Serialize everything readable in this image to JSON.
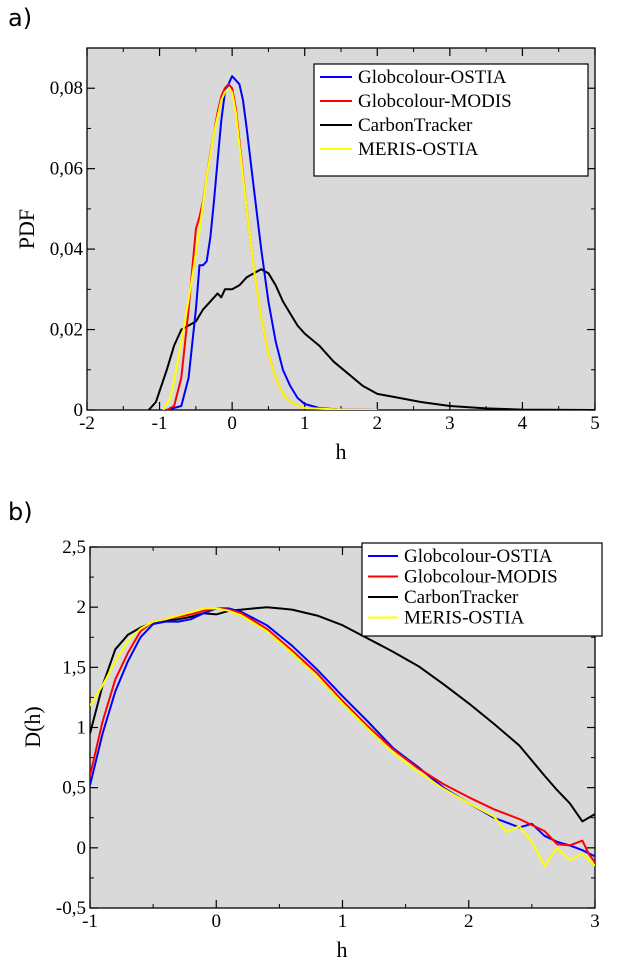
{
  "chart_data": [
    {
      "panel_label": "a)",
      "type": "line",
      "xlabel": "h",
      "ylabel": "PDF",
      "xlim": [
        -2,
        5
      ],
      "ylim": [
        0,
        0.09
      ],
      "xticks": [
        -2,
        -1,
        0,
        1,
        2,
        3,
        4,
        5
      ],
      "xtick_labels": [
        "-2",
        "-1",
        "0",
        "1",
        "2",
        "3",
        "4",
        "5"
      ],
      "yticks": [
        0,
        0.02,
        0.04,
        0.06,
        0.08
      ],
      "ytick_labels": [
        "0",
        "0,02",
        "0,04",
        "0,06",
        "0,08"
      ],
      "grid": false,
      "legend_position": "top-right",
      "series": [
        {
          "name": "Globcolour-OSTIA",
          "color": "#0000ff",
          "x": [
            -0.9,
            -0.7,
            -0.6,
            -0.5,
            -0.45,
            -0.4,
            -0.35,
            -0.3,
            -0.25,
            -0.2,
            -0.15,
            -0.1,
            -0.05,
            0.0,
            0.05,
            0.1,
            0.15,
            0.2,
            0.3,
            0.4,
            0.5,
            0.6,
            0.7,
            0.8,
            0.9,
            1.0,
            1.2,
            1.5,
            2.0
          ],
          "y": [
            0.0,
            0.001,
            0.008,
            0.025,
            0.036,
            0.036,
            0.037,
            0.043,
            0.052,
            0.062,
            0.072,
            0.079,
            0.081,
            0.083,
            0.082,
            0.081,
            0.077,
            0.07,
            0.055,
            0.04,
            0.027,
            0.017,
            0.01,
            0.006,
            0.003,
            0.0015,
            0.0005,
            0.0001,
            0.0
          ]
        },
        {
          "name": "Globcolour-MODIS",
          "color": "#ff0000",
          "x": [
            -0.9,
            -0.8,
            -0.7,
            -0.6,
            -0.5,
            -0.45,
            -0.4,
            -0.35,
            -0.3,
            -0.25,
            -0.2,
            -0.15,
            -0.1,
            -0.05,
            0.0,
            0.05,
            0.1,
            0.2,
            0.3,
            0.4,
            0.5,
            0.6,
            0.7,
            0.8,
            1.0,
            1.5,
            2.0
          ],
          "y": [
            0.0,
            0.001,
            0.008,
            0.025,
            0.045,
            0.048,
            0.052,
            0.058,
            0.064,
            0.069,
            0.074,
            0.078,
            0.08,
            0.081,
            0.08,
            0.075,
            0.067,
            0.05,
            0.035,
            0.023,
            0.014,
            0.008,
            0.004,
            0.002,
            0.0005,
            0.0001,
            0.0
          ]
        },
        {
          "name": "CarbonTracker",
          "color": "#000000",
          "x": [
            -1.15,
            -1.05,
            -0.9,
            -0.8,
            -0.7,
            -0.6,
            -0.5,
            -0.4,
            -0.3,
            -0.2,
            -0.15,
            -0.1,
            -0.05,
            0.0,
            0.1,
            0.2,
            0.3,
            0.4,
            0.5,
            0.6,
            0.7,
            0.8,
            0.9,
            1.0,
            1.2,
            1.4,
            1.6,
            1.8,
            2.0,
            2.3,
            2.6,
            3.0,
            3.5,
            4.0,
            5.0
          ],
          "y": [
            0.0,
            0.002,
            0.01,
            0.016,
            0.02,
            0.021,
            0.022,
            0.025,
            0.027,
            0.029,
            0.028,
            0.03,
            0.03,
            0.03,
            0.031,
            0.033,
            0.034,
            0.035,
            0.034,
            0.031,
            0.027,
            0.024,
            0.021,
            0.019,
            0.016,
            0.012,
            0.009,
            0.006,
            0.004,
            0.003,
            0.002,
            0.001,
            0.0004,
            0.0001,
            0.0
          ]
        },
        {
          "name": "MERIS-OSTIA",
          "color": "#ffff00",
          "x": [
            -0.95,
            -0.85,
            -0.75,
            -0.65,
            -0.55,
            -0.45,
            -0.35,
            -0.25,
            -0.15,
            -0.1,
            -0.05,
            0.0,
            0.05,
            0.1,
            0.2,
            0.3,
            0.4,
            0.5,
            0.6,
            0.7,
            0.8,
            1.0,
            1.5,
            2.0
          ],
          "y": [
            0.0,
            0.003,
            0.012,
            0.022,
            0.033,
            0.045,
            0.058,
            0.069,
            0.077,
            0.079,
            0.08,
            0.079,
            0.074,
            0.066,
            0.05,
            0.035,
            0.023,
            0.014,
            0.008,
            0.004,
            0.002,
            0.0005,
            0.0001,
            0.0
          ]
        }
      ]
    },
    {
      "panel_label": "b)",
      "type": "line",
      "xlabel": "h",
      "ylabel": "D(h)",
      "xlim": [
        -1,
        3
      ],
      "ylim": [
        -0.5,
        2.5
      ],
      "xticks": [
        -1,
        0,
        1,
        2,
        3
      ],
      "xtick_labels": [
        "-1",
        "0",
        "1",
        "2",
        "3"
      ],
      "yticks": [
        -0.5,
        0,
        0.5,
        1,
        1.5,
        2,
        2.5
      ],
      "ytick_labels": [
        "-0,5",
        "0",
        "0,5",
        "1",
        "1,5",
        "2",
        "2,5"
      ],
      "grid": false,
      "legend_position": "top-right",
      "series": [
        {
          "name": "Globcolour-OSTIA",
          "color": "#0000ff",
          "x": [
            -1.0,
            -0.9,
            -0.8,
            -0.7,
            -0.6,
            -0.5,
            -0.4,
            -0.3,
            -0.2,
            -0.1,
            0.0,
            0.1,
            0.2,
            0.4,
            0.6,
            0.8,
            1.0,
            1.2,
            1.4,
            1.6,
            1.8,
            2.0,
            2.2,
            2.4,
            2.5,
            2.6,
            2.7,
            2.8,
            2.9,
            3.0
          ],
          "y": [
            0.52,
            0.95,
            1.3,
            1.55,
            1.75,
            1.86,
            1.88,
            1.88,
            1.9,
            1.95,
            1.99,
            1.99,
            1.96,
            1.85,
            1.68,
            1.48,
            1.26,
            1.05,
            0.83,
            0.67,
            0.5,
            0.37,
            0.25,
            0.17,
            0.2,
            0.1,
            0.05,
            0.02,
            -0.02,
            -0.07
          ]
        },
        {
          "name": "Globcolour-MODIS",
          "color": "#ff0000",
          "x": [
            -1.0,
            -0.9,
            -0.8,
            -0.7,
            -0.6,
            -0.5,
            -0.4,
            -0.3,
            -0.2,
            -0.1,
            0.0,
            0.1,
            0.2,
            0.4,
            0.6,
            0.8,
            1.0,
            1.2,
            1.4,
            1.6,
            1.8,
            2.0,
            2.2,
            2.4,
            2.6,
            2.7,
            2.8,
            2.9,
            2.95,
            3.0
          ],
          "y": [
            0.6,
            1.05,
            1.4,
            1.62,
            1.8,
            1.88,
            1.9,
            1.92,
            1.94,
            1.97,
            1.99,
            1.98,
            1.95,
            1.82,
            1.64,
            1.45,
            1.22,
            1.01,
            0.82,
            0.66,
            0.53,
            0.42,
            0.32,
            0.24,
            0.14,
            0.03,
            0.02,
            0.06,
            -0.05,
            -0.12
          ]
        },
        {
          "name": "CarbonTracker",
          "color": "#000000",
          "x": [
            -1.0,
            -0.9,
            -0.8,
            -0.7,
            -0.6,
            -0.5,
            -0.4,
            -0.3,
            -0.2,
            -0.1,
            0.0,
            0.1,
            0.2,
            0.3,
            0.4,
            0.5,
            0.6,
            0.8,
            1.0,
            1.2,
            1.4,
            1.6,
            1.8,
            2.0,
            2.2,
            2.4,
            2.6,
            2.7,
            2.8,
            2.9,
            3.0
          ],
          "y": [
            0.95,
            1.35,
            1.65,
            1.77,
            1.83,
            1.87,
            1.89,
            1.9,
            1.92,
            1.95,
            1.94,
            1.97,
            1.98,
            1.99,
            2.0,
            1.99,
            1.98,
            1.93,
            1.85,
            1.74,
            1.63,
            1.51,
            1.36,
            1.2,
            1.03,
            0.85,
            0.6,
            0.48,
            0.37,
            0.22,
            0.28
          ]
        },
        {
          "name": "MERIS-OSTIA",
          "color": "#ffff00",
          "x": [
            -1.0,
            -0.9,
            -0.8,
            -0.7,
            -0.6,
            -0.5,
            -0.4,
            -0.3,
            -0.2,
            -0.1,
            0.0,
            0.1,
            0.2,
            0.4,
            0.6,
            0.8,
            1.0,
            1.2,
            1.4,
            1.6,
            1.8,
            2.0,
            2.2,
            2.3,
            2.4,
            2.5,
            2.6,
            2.7,
            2.8,
            2.9,
            3.0
          ],
          "y": [
            1.18,
            1.35,
            1.55,
            1.72,
            1.82,
            1.88,
            1.9,
            1.93,
            1.96,
            1.99,
            1.99,
            1.97,
            1.93,
            1.8,
            1.62,
            1.42,
            1.2,
            0.99,
            0.79,
            0.63,
            0.49,
            0.37,
            0.26,
            0.13,
            0.18,
            0.05,
            -0.15,
            0.0,
            -0.1,
            -0.05,
            -0.15
          ]
        }
      ]
    }
  ]
}
